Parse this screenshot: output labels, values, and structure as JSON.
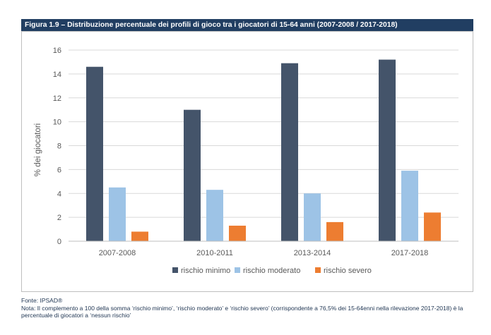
{
  "figure_title": "Figura 1.9 – Distribuzione percentuale dei profili di gioco tra i giocatori di 15-64 anni (2007-2008 / 2017-2018)",
  "source": "Fonte: IPSAD®",
  "note": "Nota: Il complemento a 100 della somma ‘rischio minimo’, ‘rischio moderato’ e ‘rischio severo’ (corrispondente a 76,5% dei 15-64enni nella rilevazione 2017-2018) è la percentuale di giocatori a ‘nessun rischio’",
  "colors": {
    "title_bg": "#213e62",
    "rischio_minimo": "#44546a",
    "rischio_moderato": "#9dc3e6",
    "rischio_severo": "#ed7d31",
    "grid": "#d9d9d9",
    "text": "#595959"
  },
  "chart_data": {
    "type": "bar",
    "categories": [
      "2007-2008",
      "2010-2011",
      "2013-2014",
      "2017-2018"
    ],
    "series": [
      {
        "name": "rischio minimo",
        "color": "#44546a",
        "values": [
          14.6,
          11.0,
          14.9,
          15.2
        ]
      },
      {
        "name": "rischio moderato",
        "color": "#9dc3e6",
        "values": [
          4.5,
          4.3,
          4.0,
          5.9
        ]
      },
      {
        "name": "rischio severo",
        "color": "#ed7d31",
        "values": [
          0.8,
          1.3,
          1.6,
          2.4
        ]
      }
    ],
    "xlabel": "",
    "ylabel": "% dei giocatori",
    "ylim": [
      0,
      16
    ],
    "yticks": [
      0,
      2,
      4,
      6,
      8,
      10,
      12,
      14,
      16
    ],
    "grid": true,
    "legend_position": "bottom"
  }
}
